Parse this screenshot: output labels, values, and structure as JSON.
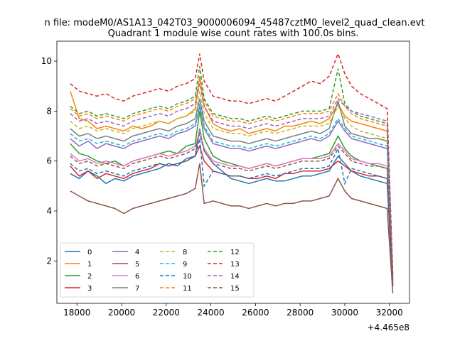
{
  "chart_data": {
    "type": "line",
    "suptitle": "n file: modeM0/AS1A13_042T03_9000006094_45487cztM0_level2_quad_clean.evt",
    "title": "Quadrant 1 module wise count rates with 100.0s bins.",
    "xlabel": "",
    "ylabel": "",
    "x_offset_label": "+4.465e8",
    "xlim": [
      17100,
      32900
    ],
    "ylim": [
      0.3,
      10.8
    ],
    "x_ticks": [
      18000,
      20000,
      22000,
      24000,
      26000,
      28000,
      30000,
      32000
    ],
    "y_ticks": [
      2,
      4,
      6,
      8,
      10
    ],
    "grid": false,
    "legend_position": "lower-left",
    "legend_columns": 4,
    "x": [
      17700,
      18100,
      18500,
      18900,
      19300,
      19700,
      20100,
      20500,
      20900,
      21300,
      21700,
      22100,
      22500,
      22900,
      23300,
      23500,
      23700,
      24100,
      24500,
      24900,
      25300,
      25700,
      26100,
      26500,
      26900,
      27300,
      27700,
      28100,
      28500,
      28900,
      29300,
      29700,
      30000,
      30300,
      30700,
      31100,
      31500,
      31900,
      32150
    ],
    "series": [
      {
        "name": "0",
        "color": "#1f77b4",
        "dash": "solid",
        "values": [
          5.5,
          5.3,
          5.6,
          5.4,
          5.1,
          5.3,
          5.2,
          5.4,
          5.5,
          5.6,
          5.7,
          5.9,
          5.8,
          6.1,
          6.2,
          7.3,
          6.4,
          5.9,
          5.6,
          5.3,
          5.2,
          5.1,
          5.2,
          5.3,
          5.2,
          5.2,
          5.3,
          5.4,
          5.4,
          5.5,
          5.6,
          6.2,
          5.9,
          5.6,
          5.4,
          5.3,
          5.2,
          5.1,
          1.0
        ]
      },
      {
        "name": "1",
        "color": "#ff7f0e",
        "dash": "solid",
        "values": [
          8.8,
          7.7,
          7.6,
          7.3,
          7.4,
          7.3,
          7.2,
          7.4,
          7.3,
          7.4,
          7.6,
          7.5,
          7.7,
          7.8,
          8.1,
          9.4,
          8.2,
          7.5,
          7.3,
          7.2,
          7.3,
          7.1,
          7.2,
          7.3,
          7.2,
          7.4,
          7.4,
          7.5,
          7.6,
          7.5,
          7.7,
          8.3,
          7.8,
          7.6,
          7.5,
          7.4,
          7.3,
          7.2,
          1.3
        ]
      },
      {
        "name": "2",
        "color": "#2ca02c",
        "dash": "solid",
        "values": [
          6.7,
          6.3,
          6.2,
          6.0,
          5.9,
          6.0,
          5.8,
          6.0,
          6.1,
          6.2,
          6.3,
          6.4,
          6.3,
          6.6,
          6.7,
          8.0,
          6.9,
          6.2,
          6.0,
          5.9,
          5.8,
          5.7,
          5.8,
          5.9,
          5.8,
          5.9,
          6.0,
          6.1,
          6.1,
          6.2,
          6.3,
          7.0,
          6.5,
          6.2,
          6.0,
          5.9,
          5.8,
          5.7,
          1.1
        ]
      },
      {
        "name": "3",
        "color": "#d62728",
        "dash": "solid",
        "values": [
          5.8,
          5.4,
          5.6,
          5.3,
          5.5,
          5.4,
          5.3,
          5.5,
          5.6,
          5.7,
          5.9,
          5.8,
          5.9,
          6.0,
          6.2,
          6.6,
          6.0,
          5.6,
          5.5,
          5.4,
          5.4,
          5.3,
          5.3,
          5.4,
          5.3,
          5.5,
          5.5,
          5.6,
          5.6,
          5.6,
          5.7,
          6.0,
          5.8,
          5.6,
          5.5,
          5.4,
          5.4,
          5.3,
          1.0
        ]
      },
      {
        "name": "4",
        "color": "#9467bd",
        "dash": "solid",
        "values": [
          6.9,
          6.6,
          6.8,
          6.5,
          6.7,
          6.6,
          6.5,
          6.7,
          6.8,
          6.9,
          7.0,
          6.9,
          7.1,
          7.2,
          7.4,
          8.2,
          7.3,
          6.7,
          6.6,
          6.5,
          6.5,
          6.4,
          6.5,
          6.6,
          6.5,
          6.6,
          6.7,
          6.8,
          6.9,
          6.8,
          7.0,
          7.6,
          7.2,
          6.9,
          6.8,
          6.7,
          6.6,
          6.5,
          1.2
        ]
      },
      {
        "name": "5",
        "color": "#8c564b",
        "dash": "solid",
        "values": [
          4.8,
          4.6,
          4.4,
          4.3,
          4.2,
          4.1,
          3.9,
          4.1,
          4.2,
          4.3,
          4.4,
          4.5,
          4.6,
          4.7,
          4.9,
          5.9,
          4.3,
          4.4,
          4.3,
          4.2,
          4.2,
          4.1,
          4.2,
          4.3,
          4.2,
          4.3,
          4.3,
          4.4,
          4.4,
          4.5,
          4.6,
          5.3,
          4.8,
          4.5,
          4.4,
          4.3,
          4.2,
          4.1,
          0.7
        ]
      },
      {
        "name": "6",
        "color": "#e377c2",
        "dash": "solid",
        "values": [
          6.3,
          6.0,
          6.1,
          5.9,
          6.0,
          5.9,
          5.8,
          6.0,
          6.1,
          6.2,
          6.3,
          6.2,
          6.3,
          6.4,
          6.6,
          7.2,
          6.5,
          6.0,
          5.9,
          5.8,
          5.8,
          5.7,
          5.8,
          5.9,
          5.8,
          5.9,
          6.0,
          6.1,
          6.1,
          6.1,
          6.2,
          6.7,
          6.4,
          6.1,
          6.0,
          5.9,
          5.9,
          5.8,
          1.1
        ]
      },
      {
        "name": "7",
        "color": "#7f7f7f",
        "dash": "solid",
        "values": [
          7.3,
          7.0,
          7.1,
          6.9,
          7.0,
          6.9,
          6.8,
          7.0,
          7.1,
          7.2,
          7.3,
          7.2,
          7.4,
          7.5,
          7.7,
          8.5,
          7.6,
          7.0,
          6.9,
          6.8,
          6.8,
          6.7,
          6.8,
          6.9,
          6.8,
          6.9,
          7.0,
          7.1,
          7.2,
          7.1,
          7.3,
          8.4,
          7.4,
          7.1,
          7.0,
          6.9,
          6.9,
          6.8,
          1.2
        ]
      },
      {
        "name": "8",
        "color": "#bcbd22",
        "dash": "dashed",
        "values": [
          7.6,
          7.3,
          7.4,
          7.2,
          7.3,
          7.2,
          7.1,
          7.3,
          7.4,
          7.5,
          7.6,
          7.5,
          7.7,
          7.8,
          8.0,
          8.8,
          7.9,
          7.3,
          7.2,
          7.1,
          7.1,
          7.0,
          7.1,
          7.2,
          7.1,
          7.2,
          7.3,
          7.4,
          7.4,
          7.4,
          7.5,
          8.2,
          7.7,
          7.4,
          7.2,
          7.1,
          7.0,
          6.9,
          1.3
        ]
      },
      {
        "name": "9",
        "color": "#17becf",
        "dash": "dashed",
        "values": [
          7.1,
          6.8,
          6.9,
          6.7,
          6.8,
          6.7,
          6.6,
          6.8,
          6.9,
          7.0,
          7.1,
          7.0,
          7.2,
          7.3,
          7.5,
          8.3,
          7.4,
          6.8,
          6.7,
          6.6,
          6.6,
          6.5,
          6.6,
          6.7,
          6.6,
          6.7,
          6.8,
          6.9,
          7.0,
          6.9,
          7.1,
          7.7,
          7.3,
          7.0,
          6.9,
          6.8,
          6.7,
          6.6,
          1.2
        ]
      },
      {
        "name": "10",
        "color": "#1f77b4",
        "dash": "dashed",
        "values": [
          5.9,
          5.6,
          5.7,
          5.5,
          5.6,
          5.5,
          5.4,
          5.6,
          5.7,
          5.8,
          5.9,
          5.8,
          5.9,
          6.0,
          6.2,
          6.9,
          5.0,
          5.6,
          5.5,
          5.4,
          5.4,
          5.3,
          5.4,
          5.5,
          5.4,
          5.5,
          5.6,
          5.7,
          5.7,
          5.7,
          5.8,
          6.5,
          5.1,
          5.7,
          5.6,
          5.5,
          5.4,
          5.3,
          1.0
        ]
      },
      {
        "name": "11",
        "color": "#ff7f0e",
        "dash": "dashed",
        "values": [
          8.1,
          7.8,
          7.9,
          7.7,
          7.8,
          7.7,
          7.6,
          7.8,
          7.9,
          8.0,
          8.1,
          8.0,
          8.2,
          8.3,
          8.5,
          9.3,
          8.4,
          7.8,
          7.7,
          7.6,
          7.6,
          7.5,
          7.6,
          7.7,
          7.6,
          7.7,
          7.8,
          7.9,
          7.9,
          7.9,
          8.0,
          8.7,
          8.2,
          7.9,
          7.7,
          7.6,
          7.5,
          7.4,
          1.4
        ]
      },
      {
        "name": "12",
        "color": "#2ca02c",
        "dash": "dashed",
        "values": [
          8.2,
          7.9,
          8.0,
          7.8,
          7.9,
          7.8,
          7.7,
          7.9,
          8.0,
          8.1,
          8.2,
          8.1,
          8.3,
          8.4,
          8.6,
          9.8,
          8.5,
          7.9,
          7.8,
          7.7,
          7.7,
          7.6,
          7.7,
          7.8,
          7.7,
          7.8,
          7.9,
          8.0,
          8.0,
          8.0,
          8.1,
          9.7,
          8.3,
          8.0,
          7.8,
          7.7,
          7.6,
          7.5,
          1.4
        ]
      },
      {
        "name": "13",
        "color": "#d62728",
        "dash": "dashed",
        "values": [
          9.1,
          8.8,
          8.7,
          8.6,
          8.7,
          8.5,
          8.4,
          8.6,
          8.7,
          8.8,
          8.9,
          8.8,
          9.0,
          9.1,
          9.3,
          10.3,
          9.2,
          8.6,
          8.5,
          8.4,
          8.4,
          8.3,
          8.4,
          8.5,
          8.4,
          8.6,
          8.8,
          9.0,
          9.2,
          9.1,
          9.4,
          10.3,
          9.5,
          9.0,
          8.7,
          8.5,
          8.3,
          8.1,
          1.5
        ]
      },
      {
        "name": "14",
        "color": "#9467bd",
        "dash": "dashed",
        "values": [
          7.9,
          7.6,
          7.7,
          7.5,
          7.6,
          7.5,
          7.4,
          7.6,
          7.7,
          7.8,
          7.9,
          7.8,
          8.0,
          8.1,
          8.3,
          9.1,
          8.2,
          7.6,
          7.5,
          7.4,
          7.4,
          7.3,
          7.4,
          7.5,
          7.4,
          7.5,
          7.6,
          7.7,
          7.7,
          7.7,
          7.8,
          8.5,
          8.2,
          8.0,
          7.9,
          7.8,
          7.7,
          7.6,
          1.3
        ]
      },
      {
        "name": "15",
        "color": "#8c564b",
        "dash": "dashed",
        "values": [
          6.2,
          5.9,
          6.0,
          5.8,
          5.9,
          5.8,
          5.7,
          5.9,
          6.0,
          6.1,
          6.2,
          6.1,
          6.2,
          6.3,
          6.5,
          7.1,
          6.4,
          5.9,
          5.8,
          5.7,
          5.7,
          5.6,
          5.7,
          5.8,
          5.7,
          5.8,
          5.9,
          6.0,
          6.0,
          6.0,
          6.1,
          6.6,
          6.3,
          6.0,
          5.9,
          5.8,
          5.8,
          5.7,
          1.1
        ]
      }
    ]
  }
}
